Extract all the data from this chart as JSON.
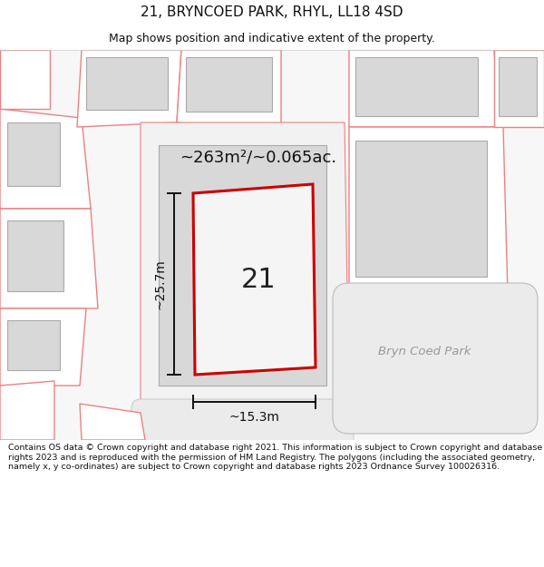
{
  "title": "21, BRYNCOED PARK, RHYL, LL18 4SD",
  "subtitle": "Map shows position and indicative extent of the property.",
  "footer": "Contains OS data © Crown copyright and database right 2021. This information is subject to Crown copyright and database rights 2023 and is reproduced with the permission of HM Land Registry. The polygons (including the associated geometry, namely x, y co-ordinates) are subject to Crown copyright and database rights 2023 Ordnance Survey 100026316.",
  "area_label": "~263m²/~0.065ac.",
  "width_label": "~15.3m",
  "height_label": "~25.7m",
  "plot_number": "21",
  "road_label": "Bryn Coed Park",
  "bg_color": "#ffffff",
  "map_bg": "#ffffff",
  "plot_outline_color": "#cc0000",
  "building_fill": "#d8d8d8",
  "building_stroke": "#aaaaaa",
  "prop_fill": "#ffffff",
  "other_outline_color": "#f08080",
  "dim_line_color": "#111111",
  "title_fontsize": 11,
  "subtitle_fontsize": 9,
  "footer_fontsize": 6.8
}
